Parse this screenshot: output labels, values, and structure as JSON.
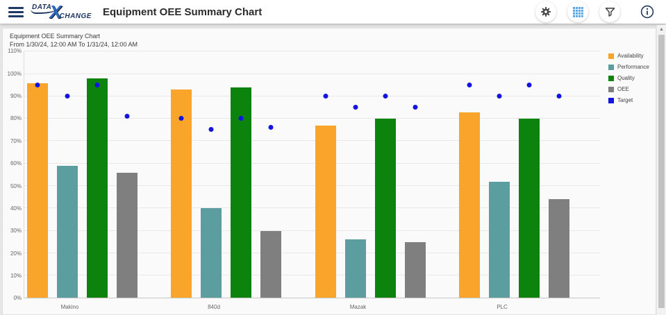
{
  "header": {
    "title": "Equipment OEE Summary Chart",
    "logo": {
      "data": "DATA",
      "x": "X",
      "change": "CHANGE"
    },
    "icons": [
      "menu-icon",
      "gear-icon",
      "grid-view-icon",
      "filter-icon",
      "info-icon"
    ]
  },
  "chart": {
    "title": "Equipment OEE Summary Chart",
    "subtitle": "From 1/30/24, 12:00 AM To 1/31/24, 12:00 AM"
  },
  "chart_data": {
    "type": "bar",
    "title": "Equipment OEE Summary Chart",
    "subtitle": "From 1/30/24, 12:00 AM To 1/31/24, 12:00 AM",
    "categories": [
      "Makino",
      "840d",
      "Mazak",
      "PLC"
    ],
    "series": [
      {
        "name": "Availability",
        "color": "#F9A42B",
        "values": [
          96,
          93,
          77,
          83
        ],
        "targets": [
          95,
          80,
          90,
          95
        ]
      },
      {
        "name": "Performance",
        "color": "#5C9EA0",
        "values": [
          59,
          40,
          26,
          52
        ],
        "targets": [
          90,
          75,
          85,
          90
        ]
      },
      {
        "name": "Quality",
        "color": "#0C830C",
        "values": [
          98,
          94,
          80,
          80
        ],
        "targets": [
          95,
          80,
          90,
          95
        ]
      },
      {
        "name": "OEE",
        "color": "#7F7F7F",
        "values": [
          56,
          30,
          25,
          44
        ],
        "targets": [
          81,
          76,
          85,
          90
        ]
      }
    ],
    "target": {
      "name": "Target",
      "color": "#1414E0"
    },
    "ylim": [
      0,
      110
    ],
    "yticks": [
      "110%",
      "100%",
      "90%",
      "80%",
      "70%",
      "60%",
      "50%",
      "40%",
      "30%",
      "20%",
      "10%",
      "0%"
    ],
    "legend": [
      "Availability",
      "Performance",
      "Quality",
      "OEE",
      "Target"
    ],
    "legend_position": "right",
    "grid": true
  },
  "colors": {
    "accent_navy": "#1f3864",
    "accent_blue": "#2f6bbf",
    "grid_icon_blue": "#58a6e8",
    "panel_bg": "#fafafa",
    "page_bg": "#e6e6e6"
  }
}
